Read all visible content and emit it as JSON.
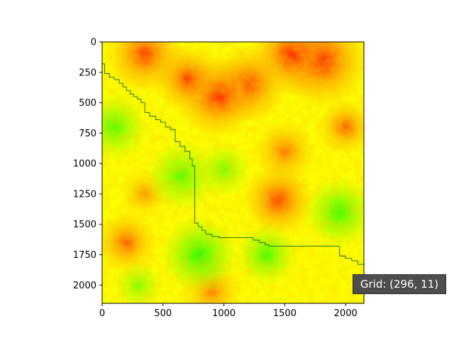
{
  "chart_data": {
    "type": "heatmap",
    "title": "",
    "xlabel": "",
    "ylabel": "",
    "xlim": [
      0,
      2150
    ],
    "ylim": [
      2150,
      0
    ],
    "y_inverted": true,
    "grid": false,
    "x_ticks": [
      0,
      500,
      1000,
      1500,
      2000
    ],
    "y_ticks": [
      0,
      250,
      500,
      750,
      1000,
      1250,
      1500,
      1750,
      2000
    ],
    "colormap": [
      "#00ff00",
      "#ffff00",
      "#ff0000"
    ],
    "hot_regions": [
      {
        "x": 1800,
        "y": 150,
        "radius": 300,
        "intensity": 1.0
      },
      {
        "x": 1550,
        "y": 100,
        "radius": 260,
        "intensity": 0.9
      },
      {
        "x": 1200,
        "y": 350,
        "radius": 250,
        "intensity": 0.85
      },
      {
        "x": 950,
        "y": 450,
        "radius": 260,
        "intensity": 0.95
      },
      {
        "x": 700,
        "y": 300,
        "radius": 220,
        "intensity": 0.8
      },
      {
        "x": 350,
        "y": 100,
        "radius": 250,
        "intensity": 0.85
      },
      {
        "x": 1450,
        "y": 1300,
        "radius": 230,
        "intensity": 0.85
      },
      {
        "x": 1500,
        "y": 900,
        "radius": 200,
        "intensity": 0.6
      },
      {
        "x": 200,
        "y": 1650,
        "radius": 200,
        "intensity": 0.7
      },
      {
        "x": 350,
        "y": 1250,
        "radius": 160,
        "intensity": 0.45
      },
      {
        "x": 900,
        "y": 2050,
        "radius": 200,
        "intensity": 0.55
      },
      {
        "x": 2000,
        "y": 700,
        "radius": 180,
        "intensity": 0.7
      }
    ],
    "cool_regions": [
      {
        "x": 800,
        "y": 1750,
        "radius": 250,
        "intensity": 1.0
      },
      {
        "x": 1350,
        "y": 1750,
        "radius": 200,
        "intensity": 0.85
      },
      {
        "x": 1950,
        "y": 1400,
        "radius": 230,
        "intensity": 0.9
      },
      {
        "x": 100,
        "y": 700,
        "radius": 220,
        "intensity": 0.8
      },
      {
        "x": 650,
        "y": 1100,
        "radius": 230,
        "intensity": 0.75
      },
      {
        "x": 1000,
        "y": 1050,
        "radius": 180,
        "intensity": 0.6
      },
      {
        "x": 300,
        "y": 2000,
        "radius": 160,
        "intensity": 0.55
      }
    ],
    "path_color": "#0a6e0a",
    "path": [
      [
        0,
        180
      ],
      [
        20,
        180
      ],
      [
        20,
        260
      ],
      [
        60,
        260
      ],
      [
        60,
        290
      ],
      [
        100,
        290
      ],
      [
        100,
        310
      ],
      [
        140,
        310
      ],
      [
        140,
        340
      ],
      [
        170,
        340
      ],
      [
        170,
        370
      ],
      [
        200,
        370
      ],
      [
        200,
        400
      ],
      [
        230,
        400
      ],
      [
        230,
        430
      ],
      [
        260,
        430
      ],
      [
        260,
        450
      ],
      [
        290,
        450
      ],
      [
        290,
        470
      ],
      [
        320,
        470
      ],
      [
        320,
        500
      ],
      [
        350,
        500
      ],
      [
        350,
        580
      ],
      [
        390,
        580
      ],
      [
        390,
        610
      ],
      [
        440,
        610
      ],
      [
        440,
        640
      ],
      [
        480,
        640
      ],
      [
        480,
        660
      ],
      [
        520,
        660
      ],
      [
        520,
        700
      ],
      [
        560,
        700
      ],
      [
        560,
        720
      ],
      [
        600,
        720
      ],
      [
        600,
        820
      ],
      [
        640,
        820
      ],
      [
        640,
        860
      ],
      [
        680,
        860
      ],
      [
        680,
        900
      ],
      [
        720,
        900
      ],
      [
        720,
        960
      ],
      [
        740,
        960
      ],
      [
        740,
        1020
      ],
      [
        760,
        1020
      ],
      [
        760,
        1490
      ],
      [
        790,
        1490
      ],
      [
        790,
        1520
      ],
      [
        820,
        1520
      ],
      [
        820,
        1550
      ],
      [
        850,
        1550
      ],
      [
        850,
        1580
      ],
      [
        900,
        1580
      ],
      [
        900,
        1600
      ],
      [
        960,
        1600
      ],
      [
        960,
        1610
      ],
      [
        1240,
        1610
      ],
      [
        1240,
        1630
      ],
      [
        1290,
        1630
      ],
      [
        1290,
        1650
      ],
      [
        1340,
        1650
      ],
      [
        1340,
        1670
      ],
      [
        1370,
        1670
      ],
      [
        1370,
        1680
      ],
      [
        1950,
        1680
      ],
      [
        1950,
        1760
      ],
      [
        2000,
        1760
      ],
      [
        2000,
        1780
      ],
      [
        2050,
        1780
      ],
      [
        2050,
        1800
      ],
      [
        2100,
        1800
      ],
      [
        2100,
        1830
      ],
      [
        2150,
        1830
      ]
    ]
  },
  "tooltip": {
    "text": "Grid: (296, 11)"
  }
}
